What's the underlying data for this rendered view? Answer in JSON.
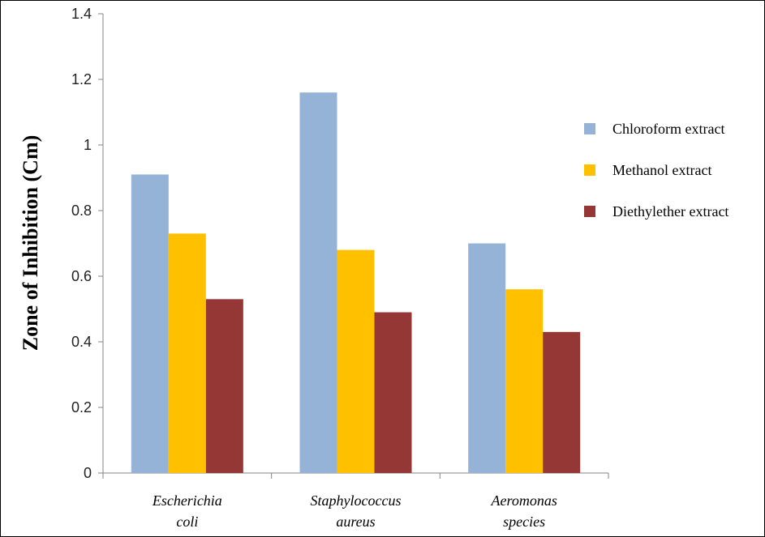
{
  "chart_data": {
    "type": "bar",
    "title": "",
    "xlabel": "",
    "ylabel": "Zone of Inhibition (Cm)",
    "ylim": [
      0,
      1.4
    ],
    "yticks": [
      "0",
      "0.2",
      "0.4",
      "0.6",
      "0.8",
      "1",
      "1.2",
      "1.4"
    ],
    "categories": [
      [
        "Escherichia",
        "coli"
      ],
      [
        "Staphylococcus",
        "aureus"
      ],
      [
        "Aeromonas",
        "species"
      ]
    ],
    "series": [
      {
        "name": "Chloroform extract",
        "color": "#95b3d7",
        "values": [
          0.91,
          1.16,
          0.7
        ]
      },
      {
        "name": "Methanol extract",
        "color": "#ffc000",
        "values": [
          0.73,
          0.68,
          0.56
        ]
      },
      {
        "name": "Diethylether extract",
        "color": "#953735",
        "values": [
          0.53,
          0.49,
          0.43
        ]
      }
    ],
    "grid": false,
    "legend": "right"
  }
}
